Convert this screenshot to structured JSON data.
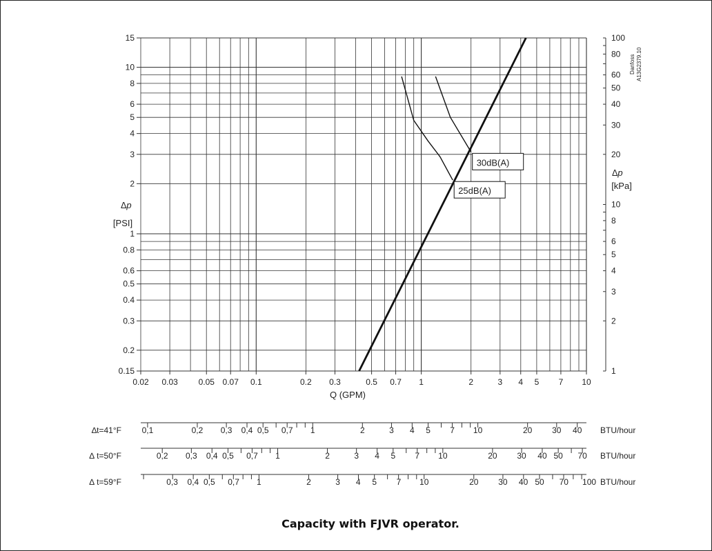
{
  "caption": "Capacity with FJVR operator.",
  "stamp": [
    "Danfoss",
    "A13G2379.10"
  ],
  "chart_data": {
    "type": "line",
    "xscale": "log",
    "yscale": "log",
    "xlim": [
      0.02,
      10
    ],
    "ylim": [
      0.15,
      15
    ],
    "y2lim": [
      1,
      100
    ],
    "grid": true,
    "xlabel": "Q (GPM)",
    "ylabel": [
      "∆p",
      "[PSI]"
    ],
    "y2label": [
      "∆p",
      "[kPa]"
    ],
    "x_ticks": [
      {
        "v": 0.02,
        "t": "0.02"
      },
      {
        "v": 0.03,
        "t": "0.03"
      },
      {
        "v": 0.05,
        "t": "0.05"
      },
      {
        "v": 0.07,
        "t": "0.07"
      },
      {
        "v": 0.1,
        "t": "0.1"
      },
      {
        "v": 0.2,
        "t": "0.2"
      },
      {
        "v": 0.3,
        "t": "0.3"
      },
      {
        "v": 0.5,
        "t": "0.5"
      },
      {
        "v": 0.7,
        "t": "0.7"
      },
      {
        "v": 1,
        "t": "1"
      },
      {
        "v": 2,
        "t": "2"
      },
      {
        "v": 3,
        "t": "3"
      },
      {
        "v": 4,
        "t": "4"
      },
      {
        "v": 5,
        "t": "5"
      },
      {
        "v": 7,
        "t": "7"
      },
      {
        "v": 10,
        "t": "10"
      }
    ],
    "y_ticks": [
      {
        "v": 15,
        "t": "15"
      },
      {
        "v": 10,
        "t": "10"
      },
      {
        "v": 8,
        "t": "8"
      },
      {
        "v": 6,
        "t": "6"
      },
      {
        "v": 5,
        "t": "5"
      },
      {
        "v": 4,
        "t": "4"
      },
      {
        "v": 3,
        "t": "3"
      },
      {
        "v": 2,
        "t": "2"
      },
      {
        "v": 1,
        "t": "1"
      },
      {
        "v": 0.8,
        "t": "0.8"
      },
      {
        "v": 0.6,
        "t": "0.6"
      },
      {
        "v": 0.5,
        "t": "0.5"
      },
      {
        "v": 0.4,
        "t": "0.4"
      },
      {
        "v": 0.3,
        "t": "0.3"
      },
      {
        "v": 0.2,
        "t": "0.2"
      },
      {
        "v": 0.15,
        "t": "0.15"
      }
    ],
    "y2_ticks": [
      {
        "v": 100,
        "t": "100"
      },
      {
        "v": 80,
        "t": "80"
      },
      {
        "v": 60,
        "t": "60"
      },
      {
        "v": 50,
        "t": "50"
      },
      {
        "v": 40,
        "t": "40"
      },
      {
        "v": 30,
        "t": "30"
      },
      {
        "v": 20,
        "t": "20"
      },
      {
        "v": 10,
        "t": "10"
      },
      {
        "v": 8,
        "t": "8"
      },
      {
        "v": 6,
        "t": "6"
      },
      {
        "v": 5,
        "t": "5"
      },
      {
        "v": 4,
        "t": "4"
      },
      {
        "v": 3,
        "t": "3"
      },
      {
        "v": 2,
        "t": "2"
      },
      {
        "v": 1,
        "t": "1"
      }
    ],
    "series": [
      {
        "name": "",
        "x": [
          0.42,
          4.3
        ],
        "y": [
          0.15,
          15
        ]
      },
      {
        "name": "25dB(A)",
        "x": [
          0.76,
          0.9,
          1.1,
          1.3,
          1.55
        ],
        "y": [
          8.8,
          4.8,
          3.6,
          2.9,
          2.1
        ]
      },
      {
        "name": "30dB(A)",
        "x": [
          1.22,
          1.5,
          2.0
        ],
        "y": [
          8.8,
          5.0,
          3.1
        ]
      }
    ],
    "annotations": [
      {
        "text": "30dB(A)",
        "x": 2.0,
        "y": 3.1
      },
      {
        "text": "25dB(A)",
        "x": 1.55,
        "y": 2.1
      }
    ],
    "btu_scales": [
      {
        "label": "∆t=41°F",
        "unit": "BTU/hour",
        "ticks": [
          {
            "q": 0.022,
            "t": "0,1"
          },
          {
            "q": 0.044,
            "t": "0,2"
          },
          {
            "q": 0.066,
            "t": "0,3"
          },
          {
            "q": 0.088,
            "t": "0,4"
          },
          {
            "q": 0.11,
            "t": "0,5"
          },
          {
            "q": 0.154,
            "t": "0,7"
          },
          {
            "q": 0.22,
            "t": "1"
          },
          {
            "q": 0.44,
            "t": "2"
          },
          {
            "q": 0.66,
            "t": "3"
          },
          {
            "q": 0.88,
            "t": "4"
          },
          {
            "q": 1.1,
            "t": "5"
          },
          {
            "q": 1.54,
            "t": "7"
          },
          {
            "q": 2.2,
            "t": "10"
          },
          {
            "q": 4.4,
            "t": "20"
          },
          {
            "q": 6.6,
            "t": "30"
          },
          {
            "q": 8.8,
            "t": "40"
          }
        ]
      },
      {
        "label": "∆ t=50°F",
        "unit": "BTU/hour",
        "ticks": [
          {
            "q": 0.027,
            "t": "0,2"
          },
          {
            "q": 0.0405,
            "t": "0,3"
          },
          {
            "q": 0.054,
            "t": "0,4"
          },
          {
            "q": 0.0675,
            "t": "0,5"
          },
          {
            "q": 0.0945,
            "t": "0,7"
          },
          {
            "q": 0.135,
            "t": "1"
          },
          {
            "q": 0.27,
            "t": "2"
          },
          {
            "q": 0.405,
            "t": "3"
          },
          {
            "q": 0.54,
            "t": "4"
          },
          {
            "q": 0.675,
            "t": "5"
          },
          {
            "q": 0.945,
            "t": "7"
          },
          {
            "q": 1.35,
            "t": "10"
          },
          {
            "q": 2.7,
            "t": "20"
          },
          {
            "q": 4.05,
            "t": "30"
          },
          {
            "q": 5.4,
            "t": "40"
          },
          {
            "q": 6.75,
            "t": "50"
          },
          {
            "q": 9.45,
            "t": "70"
          }
        ]
      },
      {
        "label": "∆ t=59°F",
        "unit": "BTU/hour",
        "ticks": [
          {
            "q": 0.031,
            "t": "0,3"
          },
          {
            "q": 0.0415,
            "t": "0,4"
          },
          {
            "q": 0.052,
            "t": "0,5"
          },
          {
            "q": 0.073,
            "t": "0,7"
          },
          {
            "q": 0.104,
            "t": "1"
          },
          {
            "q": 0.208,
            "t": "2"
          },
          {
            "q": 0.312,
            "t": "3"
          },
          {
            "q": 0.415,
            "t": "4"
          },
          {
            "q": 0.52,
            "t": "5"
          },
          {
            "q": 0.73,
            "t": "7"
          },
          {
            "q": 1.04,
            "t": "10"
          },
          {
            "q": 2.08,
            "t": "20"
          },
          {
            "q": 3.12,
            "t": "30"
          },
          {
            "q": 4.15,
            "t": "40"
          },
          {
            "q": 5.2,
            "t": "50"
          },
          {
            "q": 7.3,
            "t": "70"
          },
          {
            "q": 10.4,
            "t": "100"
          }
        ]
      }
    ]
  }
}
